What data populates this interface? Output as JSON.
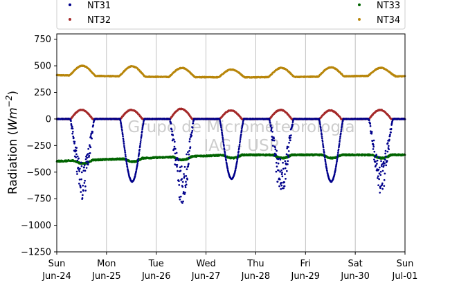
{
  "chart_data": {
    "type": "scatter",
    "title": "",
    "xlabel": "",
    "ylabel": "Radiation (Wm⁻²)",
    "ylabel_parts": {
      "base": "Radiation (",
      "var": "Wm",
      "exp": "−2",
      "close": ")"
    },
    "x_range": [
      "2024-06-24",
      "2024-07-01"
    ],
    "ylim": [
      -1250,
      800
    ],
    "y_ticks": [
      -1250,
      -1000,
      -750,
      -500,
      -250,
      0,
      250,
      500,
      750
    ],
    "y_tick_labels": [
      "−1250",
      "−1000",
      "−750",
      "−500",
      "−250",
      "0",
      "250",
      "500",
      "750"
    ],
    "x_ticks": [
      {
        "date": "2024-06-24",
        "day_index": 0,
        "line1": "Sun",
        "line2": "Jun-24"
      },
      {
        "date": "2024-06-25",
        "day_index": 1,
        "line1": "Mon",
        "line2": "Jun-25"
      },
      {
        "date": "2024-06-26",
        "day_index": 2,
        "line1": "Tue",
        "line2": "Jun-26"
      },
      {
        "date": "2024-06-27",
        "day_index": 3,
        "line1": "Wed",
        "line2": "Jun-27"
      },
      {
        "date": "2024-06-28",
        "day_index": 4,
        "line1": "Thu",
        "line2": "Jun-28"
      },
      {
        "date": "2024-06-29",
        "day_index": 5,
        "line1": "Fri",
        "line2": "Jun-29"
      },
      {
        "date": "2024-06-30",
        "day_index": 6,
        "line1": "Sat",
        "line2": "Jun-30"
      },
      {
        "date": "2024-07-01",
        "day_index": 7,
        "line1": "Sun",
        "line2": "Jul-01"
      }
    ],
    "grid": "vertical",
    "legend_position": "top",
    "watermark": [
      "Grupo de Micrometeorologia",
      "IAG - USP"
    ],
    "daily_noon_minimum_NT31": [
      -760,
      -670,
      -800,
      -640,
      -700,
      -670,
      -700
    ],
    "series": [
      {
        "name": "NT31",
        "color": "#00008b",
        "daily_minimum": [
          -760,
          -670,
          -800,
          -640,
          -700,
          -670,
          -700
        ],
        "daily_pattern": "0 at night; deep negative dip around midday; noisy on days 0, 2, 4, 6"
      },
      {
        "name": "NT32",
        "color": "#a52a2a",
        "night_value": 0,
        "daily_peak": [
          85,
          85,
          95,
          80,
          85,
          80,
          85
        ]
      },
      {
        "name": "NT33",
        "color": "#006400",
        "range_approx": [
          -400,
          -325
        ],
        "daily_pattern": "about -400 at start, rising toward -340 with midday dips to about -380"
      },
      {
        "name": "NT34",
        "color": "#b8860b",
        "night_value_approx": 410,
        "daily_peak": [
          500,
          495,
          480,
          465,
          480,
          485,
          480
        ]
      }
    ]
  }
}
